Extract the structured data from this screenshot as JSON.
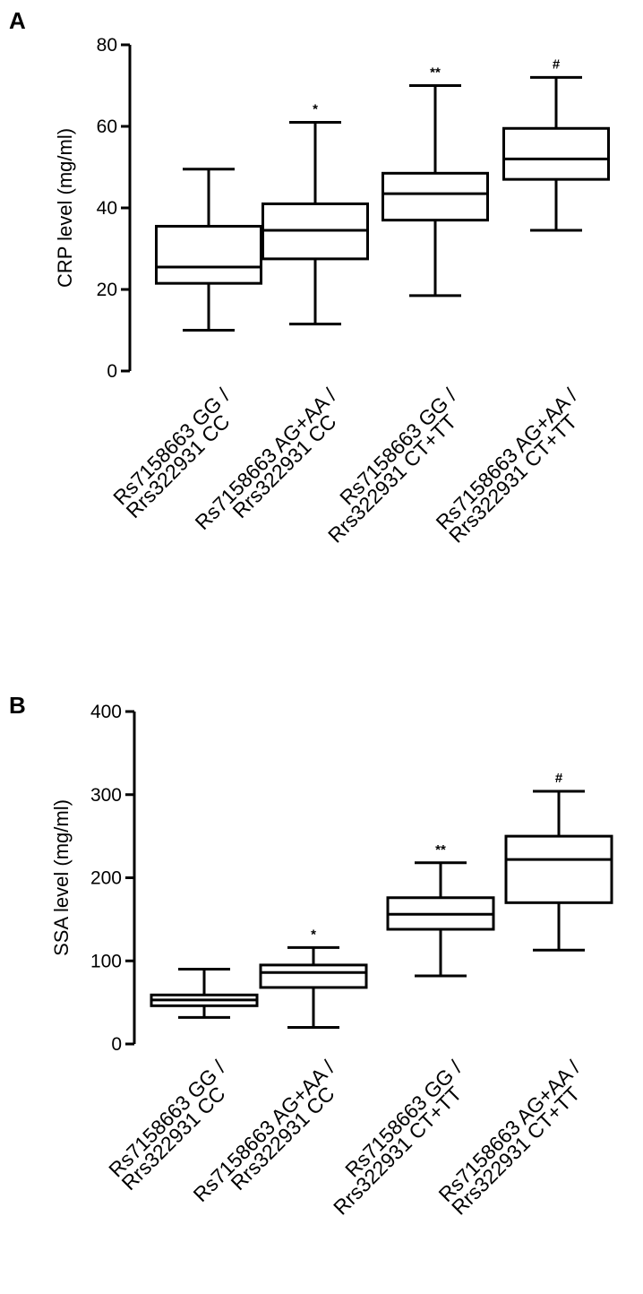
{
  "chart_data": [
    {
      "panel": "A",
      "type": "box",
      "ylabel": "CRP level (mg/ml)",
      "ylim": [
        0,
        80
      ],
      "yticks": [
        0,
        20,
        40,
        60,
        80
      ],
      "categories": [
        [
          "Rs7158663 GG /",
          "Rrs322931 CC"
        ],
        [
          "Rs7158663 AG+AA /",
          "Rrs322931 CC"
        ],
        [
          "Rs7158663 GG /",
          "Rrs322931 CT+TT"
        ],
        [
          "Rs7158663 AG+AA /",
          "Rrs322931 CT+TT"
        ]
      ],
      "boxes": [
        {
          "min": 10,
          "q1": 21.5,
          "median": 25.5,
          "q3": 35.5,
          "max": 49.5,
          "sig": ""
        },
        {
          "min": 11.5,
          "q1": 27.5,
          "median": 34.5,
          "q3": 41,
          "max": 61,
          "sig": "*"
        },
        {
          "min": 18.5,
          "q1": 37,
          "median": 43.5,
          "q3": 48.5,
          "max": 70,
          "sig": "**"
        },
        {
          "min": 34.5,
          "q1": 47,
          "median": 52,
          "q3": 59.5,
          "max": 72,
          "sig": "#"
        }
      ]
    },
    {
      "panel": "B",
      "type": "box",
      "ylabel": "SSA level (mg/ml)",
      "ylim": [
        0,
        400
      ],
      "yticks": [
        0,
        100,
        200,
        300,
        400
      ],
      "categories": [
        [
          "Rs7158663 GG /",
          "Rrs322931 CC"
        ],
        [
          "Rs7158663 AG+AA /",
          "Rrs322931 CC"
        ],
        [
          "Rs7158663 GG /",
          "Rrs322931 CT+TT"
        ],
        [
          "Rs7158663 AG+AA /",
          "Rrs322931 CT+TT"
        ]
      ],
      "boxes": [
        {
          "min": 32,
          "q1": 46,
          "median": 53,
          "q3": 59,
          "max": 90,
          "sig": ""
        },
        {
          "min": 20,
          "q1": 68,
          "median": 86,
          "q3": 95,
          "max": 116,
          "sig": "*"
        },
        {
          "min": 82,
          "q1": 138,
          "median": 156,
          "q3": 176,
          "max": 218,
          "sig": "**"
        },
        {
          "min": 113,
          "q1": 170,
          "median": 222,
          "q3": 250,
          "max": 304,
          "sig": "#"
        }
      ]
    }
  ]
}
